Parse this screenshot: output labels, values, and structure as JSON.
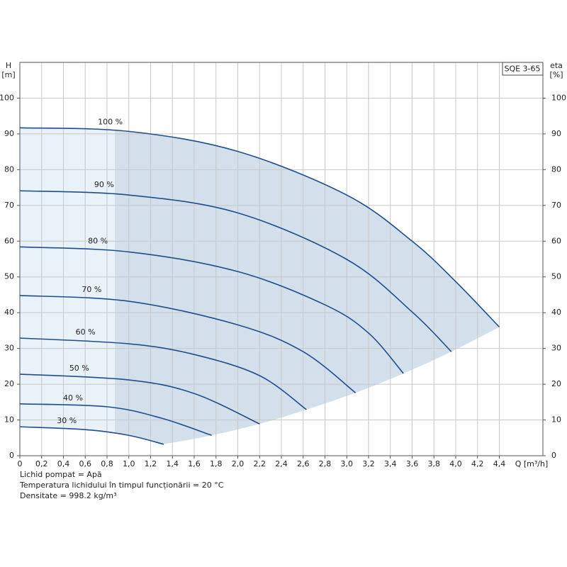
{
  "chart_data": {
    "type": "line",
    "model": "SQE 3-65",
    "y_axis_name": "H",
    "y_axis_unit": "[m]",
    "y2_axis_name": "eta",
    "y2_axis_unit": "[%]",
    "x_axis_label": "Q [m³/h]",
    "notes": [
      "Lichid pompat = Apă",
      "Temperatura lichidului în timpul funcționării = 20 °C",
      "Densitate = 998.2 kg/m³"
    ],
    "xlim": [
      0,
      4.8
    ],
    "ylim": [
      0,
      110
    ],
    "xticks": [
      0,
      {
        "value": 0.2,
        "label": "0,2"
      },
      {
        "value": 0.4,
        "label": "0,4"
      },
      {
        "value": 0.6,
        "label": "0,6"
      },
      {
        "value": 0.8,
        "label": "0,8"
      },
      {
        "value": 1.0,
        "label": "1,0"
      },
      {
        "value": 1.2,
        "label": "1,2"
      },
      {
        "value": 1.4,
        "label": "1,4"
      },
      {
        "value": 1.6,
        "label": "1,6"
      },
      {
        "value": 1.8,
        "label": "1,8"
      },
      {
        "value": 2.0,
        "label": "2,0"
      },
      {
        "value": 2.2,
        "label": "2,2"
      },
      {
        "value": 2.4,
        "label": "2,4"
      },
      {
        "value": 2.6,
        "label": "2,6"
      },
      {
        "value": 2.8,
        "label": "2,8"
      },
      {
        "value": 3.0,
        "label": "3,0"
      },
      {
        "value": 3.2,
        "label": "3,2"
      },
      {
        "value": 3.4,
        "label": "3,4"
      },
      {
        "value": 3.6,
        "label": "3,6"
      },
      {
        "value": 3.8,
        "label": "3,8"
      },
      {
        "value": 4.0,
        "label": "4,0"
      },
      {
        "value": 4.2,
        "label": "4,2"
      },
      {
        "value": 4.4,
        "label": "4,4"
      }
    ],
    "yticks": [
      0,
      10,
      20,
      30,
      40,
      50,
      60,
      70,
      80,
      90,
      100
    ],
    "grid": true,
    "operating_range_start": 0.87,
    "area_color": "#d3dfea",
    "area_color_light": "#e9f1f9",
    "series": [
      {
        "name": "100 %",
        "color": "#1f4e8c",
        "x": [
          0,
          1,
          2,
          3,
          3.6,
          4.0,
          4.4
        ],
        "values": [
          91.7,
          90.7,
          85.1,
          72.9,
          60,
          48.7,
          36
        ]
      },
      {
        "name": "90 %",
        "color": "#1f4e8c",
        "x": [
          0,
          1,
          2,
          3,
          3.6,
          3.96
        ],
        "values": [
          74.1,
          72.9,
          67.9,
          54.9,
          40.2,
          29.1
        ]
      },
      {
        "name": "80 %",
        "color": "#1f4e8c",
        "x": [
          0,
          1,
          2,
          2.8,
          3.2,
          3.52
        ],
        "values": [
          58.4,
          57,
          51.5,
          42.2,
          34.3,
          23
        ]
      },
      {
        "name": "70 %",
        "color": "#1f4e8c",
        "x": [
          0,
          1,
          2,
          2.6,
          3.08
        ],
        "values": [
          44.8,
          43.2,
          36.6,
          29.1,
          17.6
        ]
      },
      {
        "name": "60 %",
        "color": "#1f4e8c",
        "x": [
          0,
          1,
          1.6,
          2.2,
          2.63
        ],
        "values": [
          32.9,
          31.3,
          28.3,
          22.4,
          12.9
        ]
      },
      {
        "name": "50 %",
        "color": "#1f4e8c",
        "x": [
          0,
          1,
          1.6,
          2.2
        ],
        "values": [
          22.8,
          21.2,
          17.4,
          8.9
        ]
      },
      {
        "name": "40 %",
        "color": "#1f4e8c",
        "x": [
          0,
          0.8,
          1.3,
          1.76
        ],
        "values": [
          14.5,
          13.7,
          10.5,
          5.7
        ]
      },
      {
        "name": "30 %",
        "color": "#1f4e8c",
        "x": [
          0,
          0.6,
          1.0,
          1.32
        ],
        "values": [
          8.1,
          7.3,
          5.7,
          3.2
        ]
      }
    ]
  }
}
